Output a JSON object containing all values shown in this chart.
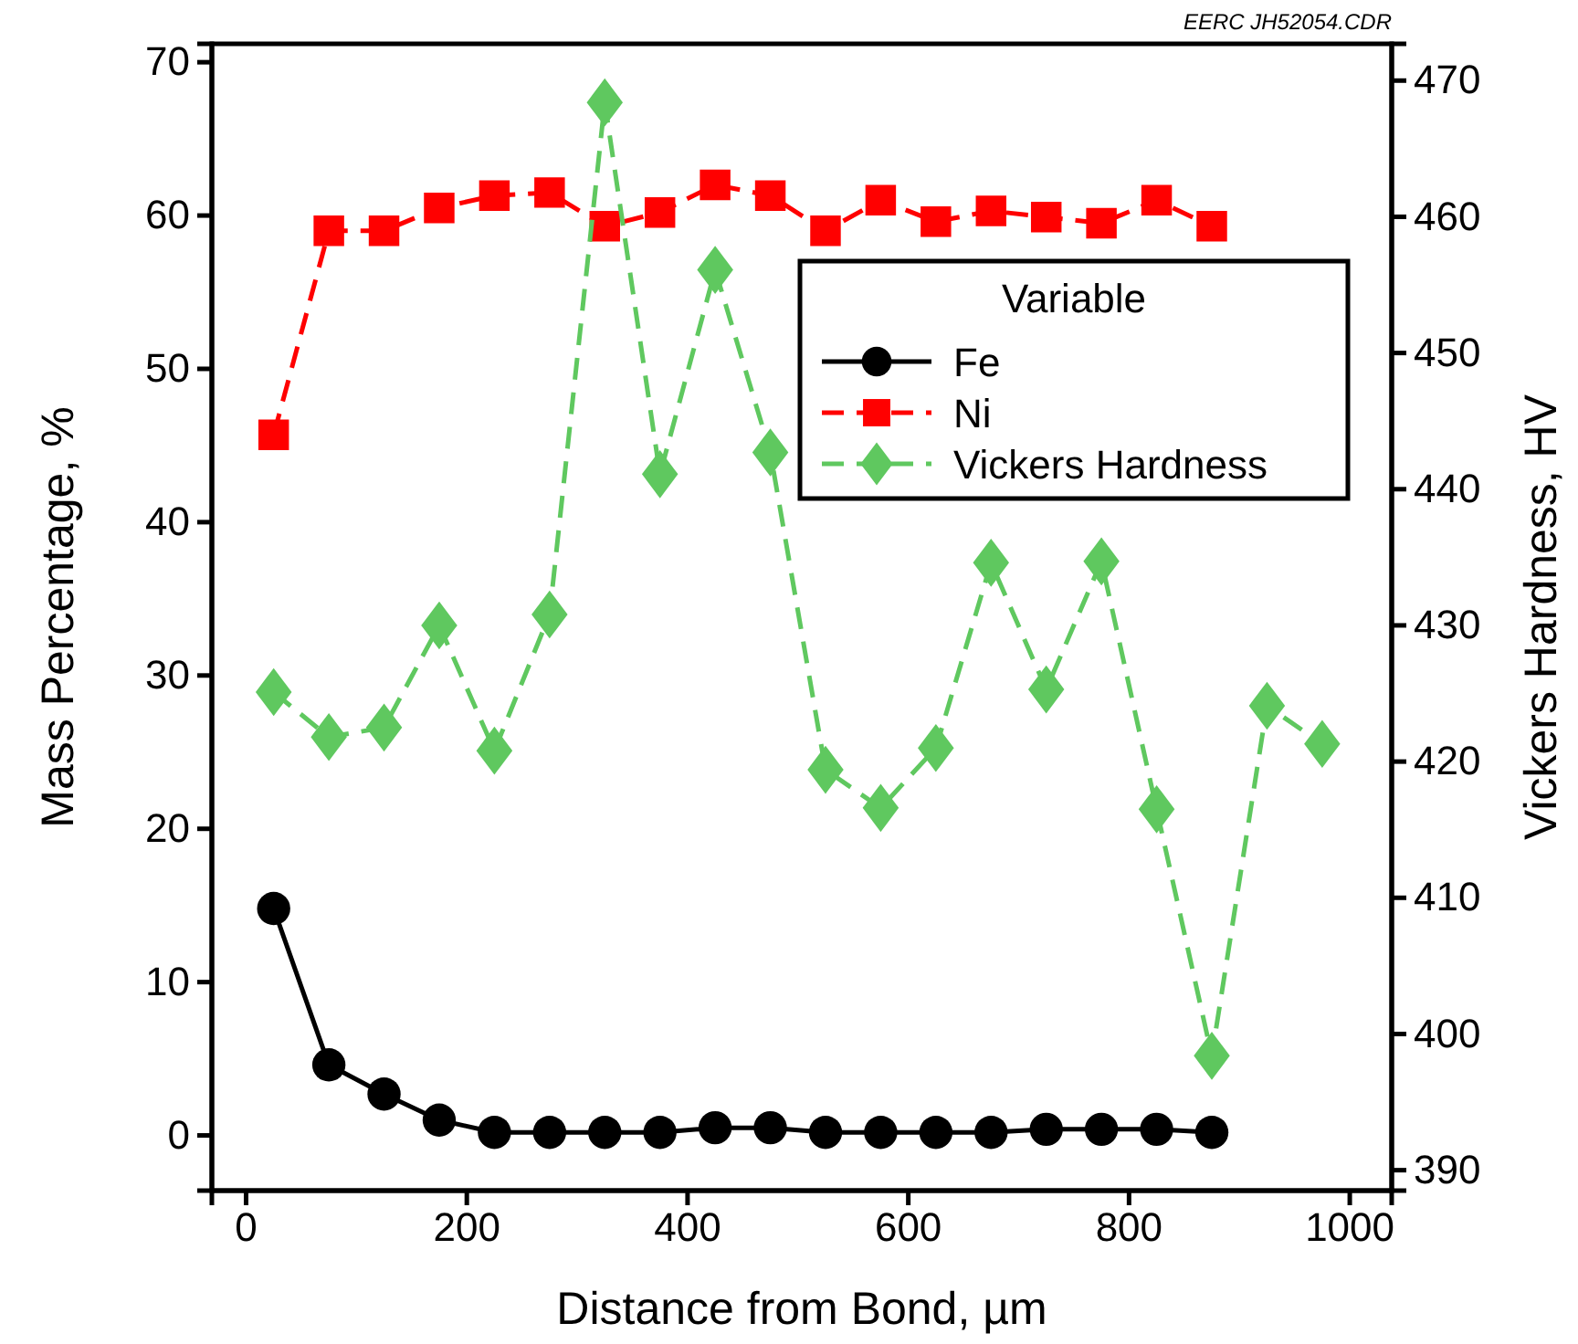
{
  "chart_data": {
    "type": "line",
    "xlabel": "Distance from Bond, µm",
    "ylabel": "Mass Percentage, %",
    "y2label": "Vickers Hardness, HV",
    "legend_title": "Variable",
    "annotations": [
      "EERC JH52054.CDR"
    ],
    "x": [
      25,
      75,
      125,
      175,
      225,
      275,
      325,
      375,
      425,
      475,
      525,
      575,
      625,
      675,
      725,
      775,
      825,
      875
    ],
    "series": [
      {
        "name": "Fe",
        "color": "#000000",
        "marker": "circle",
        "line_style": "solid",
        "values": [
          14.8,
          4.6,
          2.7,
          1.0,
          0.2,
          0.2,
          0.2,
          0.2,
          0.5,
          0.5,
          0.2,
          0.2,
          0.2,
          0.2,
          0.4,
          0.4,
          0.4,
          0.2
        ]
      },
      {
        "name": "Ni",
        "color": "#ff0000",
        "marker": "square",
        "line_style": "dashed",
        "values": [
          45.7,
          59.0,
          59.0,
          60.5,
          61.3,
          61.5,
          59.3,
          60.2,
          62.0,
          61.3,
          59.0,
          61.0,
          59.6,
          60.3,
          59.9,
          59.5,
          61.0,
          59.3
        ]
      },
      {
        "name": "Vickers Hardness",
        "color": "#5fc85f",
        "marker": "diamond",
        "line_style": "dashed",
        "axis": "y2",
        "x": [
          25,
          75,
          125,
          175,
          225,
          275,
          325,
          375,
          425,
          475,
          525,
          575,
          625,
          675,
          725,
          775,
          825,
          875,
          925,
          975
        ],
        "values": [
          425.1,
          421.8,
          422.5,
          430.0,
          420.8,
          430.8,
          468.4,
          441.1,
          456.1,
          442.7,
          419.4,
          416.6,
          421.0,
          434.6,
          425.3,
          434.7,
          416.5,
          398.4,
          424.1,
          421.3
        ]
      }
    ],
    "xlim": [
      -31,
      1038
    ],
    "xticks": [
      0,
      200,
      400,
      600,
      800,
      1000
    ],
    "ylim": [
      -3.6,
      71.2
    ],
    "yticks": [
      0,
      10,
      20,
      30,
      40,
      50,
      60,
      70
    ],
    "y2lim": [
      388.5,
      472.7
    ],
    "y2ticks": [
      390,
      400,
      410,
      420,
      430,
      440,
      450,
      460,
      470
    ],
    "grid": false,
    "legend": "top right"
  }
}
